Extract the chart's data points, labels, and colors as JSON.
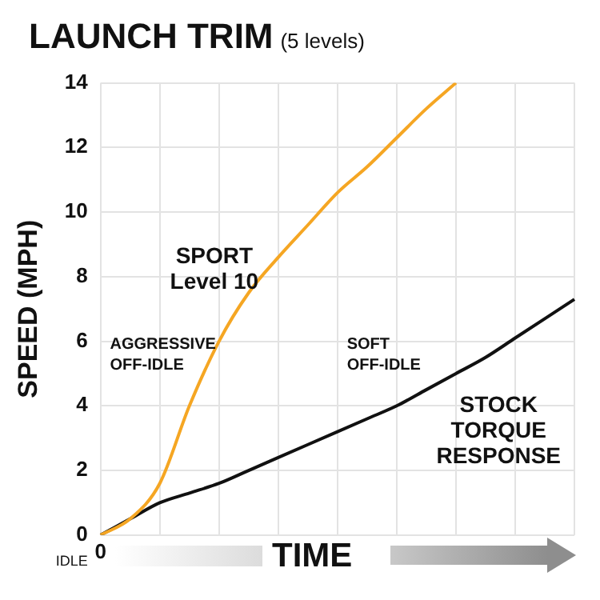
{
  "chart_data": {
    "type": "line",
    "title": "LAUNCH TRIM",
    "subtitle": "(5 levels)",
    "xlabel": "TIME",
    "ylabel": "SPEED (MPH)",
    "categories": [
      "0",
      null,
      null,
      null,
      null,
      null,
      null,
      null,
      null,
      null,
      null,
      null,
      null,
      null,
      null,
      null,
      null
    ],
    "series": [
      {
        "name": "SPORT Level 10",
        "color": "#f5a623",
        "values": [
          0,
          0.5,
          1.6,
          4.0,
          6.0,
          7.5,
          8.6,
          9.6,
          10.6,
          11.4,
          12.3,
          13.2,
          14,
          null,
          null,
          null,
          null
        ]
      },
      {
        "name": "STOCK TORQUE RESPONSE",
        "color": "#111111",
        "values": [
          0,
          0.5,
          1.0,
          1.3,
          1.6,
          2.0,
          2.4,
          2.8,
          3.2,
          3.6,
          4.0,
          4.5,
          5.0,
          5.5,
          6.1,
          6.7,
          7.3
        ]
      }
    ],
    "ylim": [
      0,
      14
    ],
    "yticks": [
      0,
      2,
      4,
      6,
      8,
      10,
      12,
      14
    ],
    "grid": true,
    "legend": false,
    "marker": "none",
    "line_style": "solid",
    "annotations": [
      "AGGRESSIVE OFF-IDLE",
      "SOFT OFF-IDLE",
      "IDLE"
    ]
  }
}
